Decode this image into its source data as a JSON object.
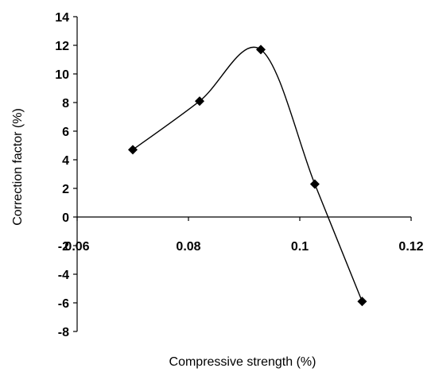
{
  "chart_data": {
    "type": "scatter",
    "title": "",
    "xlabel": "Compressive strength (%)",
    "ylabel": "Correction factor (%)",
    "xlim": [
      0.06,
      0.12
    ],
    "ylim": [
      -8,
      14
    ],
    "x_ticks": [
      0.06,
      0.08,
      0.1,
      0.12
    ],
    "x_tick_labels": [
      "0.06",
      "0.08",
      "0.1",
      "0.12"
    ],
    "y_ticks": [
      -8,
      -6,
      -4,
      -2,
      0,
      2,
      4,
      6,
      8,
      10,
      12,
      14
    ],
    "y_tick_labels": [
      "-8",
      "-6",
      "-4",
      "-2",
      "0",
      "2",
      "4",
      "6",
      "8",
      "10",
      "12",
      "14"
    ],
    "grid": false,
    "legend": "none",
    "marker": "diamond",
    "line": "smooth",
    "line_color": "#000000",
    "marker_color": "#000000",
    "series": [
      {
        "x": [
          0.07,
          0.082,
          0.093,
          0.1027,
          0.1112
        ],
        "y": [
          4.7,
          8.1,
          11.7,
          2.3,
          -5.9
        ]
      }
    ]
  }
}
